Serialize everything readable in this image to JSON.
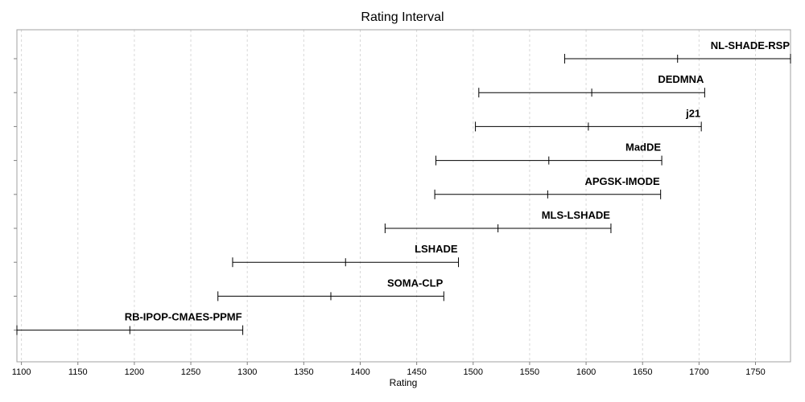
{
  "chart_data": {
    "type": "interval",
    "title": "Rating Interval",
    "xlabel": "Rating",
    "ylabel": "",
    "xlim": [
      1096,
      1781
    ],
    "xticks": [
      1100,
      1150,
      1200,
      1250,
      1300,
      1350,
      1400,
      1450,
      1500,
      1550,
      1600,
      1650,
      1700,
      1750
    ],
    "grid": true,
    "series": [
      {
        "name": "NL-SHADE-RSP",
        "low": 1581,
        "mid": 1681,
        "high": 1781
      },
      {
        "name": "DEDMNA",
        "low": 1505,
        "mid": 1605,
        "high": 1705
      },
      {
        "name": "j21",
        "low": 1502,
        "mid": 1602,
        "high": 1702
      },
      {
        "name": "MadDE",
        "low": 1467,
        "mid": 1567,
        "high": 1667
      },
      {
        "name": "APGSK-IMODE",
        "low": 1466,
        "mid": 1566,
        "high": 1666
      },
      {
        "name": "MLS-LSHADE",
        "low": 1422,
        "mid": 1522,
        "high": 1622
      },
      {
        "name": "LSHADE",
        "low": 1287,
        "mid": 1387,
        "high": 1487
      },
      {
        "name": "SOMA-CLP",
        "low": 1274,
        "mid": 1374,
        "high": 1474
      },
      {
        "name": "RB-IPOP-CMAES-PPMF",
        "low": 1096,
        "mid": 1196,
        "high": 1296
      }
    ]
  }
}
